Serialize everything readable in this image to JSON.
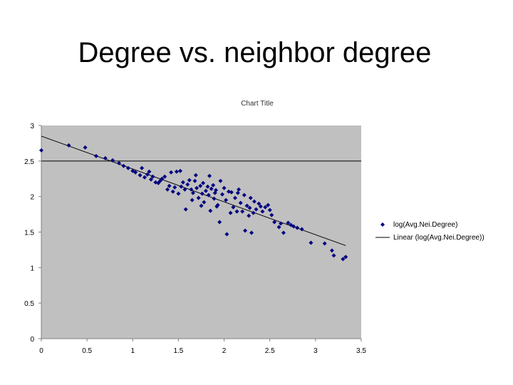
{
  "slide": {
    "title": "Degree vs. neighbor degree"
  },
  "chart_data": {
    "type": "scatter",
    "title": "Chart Title",
    "xlabel": "",
    "ylabel": "",
    "xlim": [
      0,
      3.5
    ],
    "ylim": [
      0,
      3
    ],
    "x_ticks": [
      "0",
      "0.5",
      "1",
      "1.5",
      "2",
      "2.5",
      "3",
      "3.5"
    ],
    "y_ticks": [
      "0",
      "0.5",
      "1",
      "1.5",
      "2",
      "2.5",
      "3"
    ],
    "grid": "horizontal line at 2.5",
    "legend_position": "right",
    "colors": {
      "plot_area": "#c0c0c0",
      "marker": "#000080",
      "trend": "#000000"
    },
    "series": [
      {
        "name": "log(Avg.Nei.Degree)",
        "marker": "diamond",
        "points": [
          [
            0.0,
            2.65
          ],
          [
            0.3,
            2.72
          ],
          [
            0.48,
            2.69
          ],
          [
            0.6,
            2.57
          ],
          [
            0.7,
            2.54
          ],
          [
            0.78,
            2.51
          ],
          [
            0.85,
            2.47
          ],
          [
            0.9,
            2.43
          ],
          [
            0.95,
            2.4
          ],
          [
            1.0,
            2.36
          ],
          [
            1.03,
            2.34
          ],
          [
            1.08,
            2.3
          ],
          [
            1.1,
            2.4
          ],
          [
            1.13,
            2.27
          ],
          [
            1.16,
            2.31
          ],
          [
            1.18,
            2.35
          ],
          [
            1.2,
            2.24
          ],
          [
            1.22,
            2.28
          ],
          [
            1.25,
            2.2
          ],
          [
            1.28,
            2.19
          ],
          [
            1.3,
            2.22
          ],
          [
            1.32,
            2.25
          ],
          [
            1.35,
            2.28
          ],
          [
            1.38,
            2.1
          ],
          [
            1.4,
            2.15
          ],
          [
            1.42,
            2.34
          ],
          [
            1.44,
            2.07
          ],
          [
            1.46,
            2.13
          ],
          [
            1.48,
            2.35
          ],
          [
            1.5,
            2.04
          ],
          [
            1.52,
            2.36
          ],
          [
            1.53,
            2.14
          ],
          [
            1.55,
            2.2
          ],
          [
            1.57,
            2.1
          ],
          [
            1.58,
            1.82
          ],
          [
            1.6,
            2.17
          ],
          [
            1.62,
            2.23
          ],
          [
            1.64,
            2.1
          ],
          [
            1.65,
            1.95
          ],
          [
            1.66,
            2.05
          ],
          [
            1.68,
            2.22
          ],
          [
            1.69,
            2.3
          ],
          [
            1.7,
            2.12
          ],
          [
            1.72,
            1.98
          ],
          [
            1.74,
            2.15
          ],
          [
            1.75,
            1.87
          ],
          [
            1.76,
            2.04
          ],
          [
            1.77,
            2.19
          ],
          [
            1.78,
            1.92
          ],
          [
            1.8,
            2.08
          ],
          [
            1.82,
            2.14
          ],
          [
            1.83,
            2.02
          ],
          [
            1.84,
            2.29
          ],
          [
            1.85,
            1.8
          ],
          [
            1.86,
            2.11
          ],
          [
            1.88,
            2.16
          ],
          [
            1.89,
            1.97
          ],
          [
            1.9,
            2.05
          ],
          [
            1.91,
            2.09
          ],
          [
            1.92,
            1.86
          ],
          [
            1.93,
            1.88
          ],
          [
            1.95,
            1.64
          ],
          [
            1.96,
            2.22
          ],
          [
            1.98,
            2.03
          ],
          [
            2.0,
            2.12
          ],
          [
            2.02,
            1.95
          ],
          [
            2.03,
            1.47
          ],
          [
            2.05,
            2.07
          ],
          [
            2.07,
            1.77
          ],
          [
            2.08,
            2.06
          ],
          [
            2.1,
            1.85
          ],
          [
            2.12,
            1.98
          ],
          [
            2.14,
            1.79
          ],
          [
            2.15,
            2.05
          ],
          [
            2.16,
            2.1
          ],
          [
            2.18,
            1.91
          ],
          [
            2.2,
            1.79
          ],
          [
            2.22,
            2.02
          ],
          [
            2.23,
            1.52
          ],
          [
            2.25,
            1.87
          ],
          [
            2.27,
            1.73
          ],
          [
            2.28,
            1.84
          ],
          [
            2.29,
            1.98
          ],
          [
            2.3,
            1.49
          ],
          [
            2.32,
            1.77
          ],
          [
            2.33,
            1.93
          ],
          [
            2.35,
            1.82
          ],
          [
            2.38,
            1.9
          ],
          [
            2.4,
            1.86
          ],
          [
            2.42,
            1.79
          ],
          [
            2.45,
            1.85
          ],
          [
            2.48,
            1.88
          ],
          [
            2.5,
            1.81
          ],
          [
            2.52,
            1.74
          ],
          [
            2.55,
            1.64
          ],
          [
            2.6,
            1.57
          ],
          [
            2.62,
            1.62
          ],
          [
            2.65,
            1.49
          ],
          [
            2.7,
            1.63
          ],
          [
            2.73,
            1.6
          ],
          [
            2.76,
            1.58
          ],
          [
            2.8,
            1.56
          ],
          [
            2.85,
            1.54
          ],
          [
            2.95,
            1.35
          ],
          [
            3.1,
            1.34
          ],
          [
            3.18,
            1.24
          ],
          [
            3.2,
            1.17
          ],
          [
            3.3,
            1.12
          ],
          [
            3.33,
            1.15
          ]
        ]
      },
      {
        "name": "Linear (log(Avg.Nei.Degree))",
        "type": "trendline",
        "endpoints": [
          [
            0,
            2.85
          ],
          [
            3.33,
            1.31
          ]
        ]
      }
    ]
  }
}
